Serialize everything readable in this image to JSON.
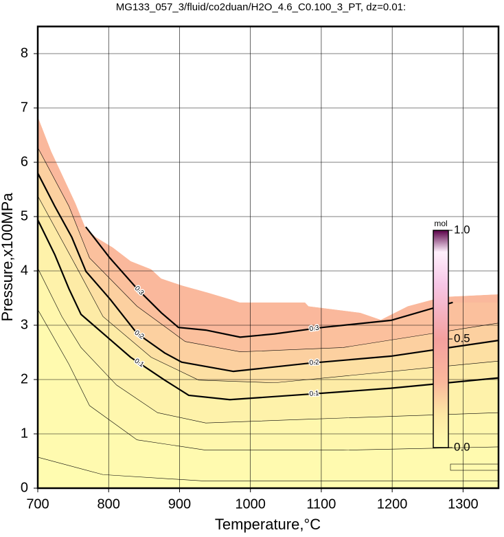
{
  "chart_data": {
    "type": "contour",
    "title": "MG133_057_3/fluid/co2duan/H2O_4.6_C0.100_3_PT, dz=0.01:",
    "x_label": "Temperature,°C",
    "y_label": "Pressure,x100MPa",
    "xlim": [
      700,
      1350
    ],
    "ylim": [
      0,
      8.5
    ],
    "xticks": [
      700,
      800,
      900,
      1000,
      1100,
      1200,
      1300
    ],
    "yticks": [
      0,
      1,
      2,
      3,
      4,
      5,
      6,
      7,
      8
    ],
    "grid": true,
    "region": {
      "x": [
        700,
        719,
        753,
        767,
        782,
        806,
        831,
        860,
        874,
        904,
        940,
        971,
        985,
        1077,
        1082,
        1155,
        1184,
        1222,
        1271,
        1350
      ],
      "y": [
        6.84,
        6.2,
        5.25,
        4.8,
        4.62,
        4.43,
        4.18,
        4.03,
        3.86,
        3.73,
        3.6,
        3.48,
        3.42,
        3.42,
        3.35,
        3.23,
        3.1,
        3.35,
        3.52,
        3.57
      ]
    },
    "contours": [
      {
        "level": 0.005,
        "x": [
          700,
          792,
          937,
          1350
        ],
        "y": [
          0.57,
          0.25,
          0.13,
          0.13
        ]
      },
      {
        "level": 0.02,
        "x": [
          700,
          744,
          773,
          840,
          937,
          1131,
          1350
        ],
        "y": [
          3.29,
          2.28,
          1.52,
          0.89,
          0.7,
          0.7,
          0.76
        ]
      },
      {
        "level": 0.05,
        "x": [
          700,
          734,
          761,
          811,
          869,
          937,
          1082,
          1350
        ],
        "y": [
          4.05,
          3.16,
          2.59,
          1.9,
          1.39,
          1.2,
          1.27,
          1.39
        ]
      },
      {
        "level": 0.1,
        "label": "0.1",
        "x": [
          700,
          724,
          744,
          761,
          792,
          831,
          879,
          913,
          971,
          1082,
          1198,
          1350
        ],
        "y": [
          4.94,
          4.3,
          3.67,
          3.2,
          2.85,
          2.41,
          1.99,
          1.71,
          1.63,
          1.73,
          1.84,
          2.03
        ]
      },
      {
        "level": 0.15,
        "x": [
          700,
          753,
          792,
          860,
          927,
          1034,
          1350
        ],
        "y": [
          5.38,
          4.11,
          3.16,
          2.41,
          1.99,
          1.94,
          2.34
        ]
      },
      {
        "level": 0.2,
        "label": "0.2",
        "x": [
          700,
          724,
          748,
          768,
          802,
          840,
          879,
          903,
          976,
          1082,
          1198,
          1350
        ],
        "y": [
          5.8,
          5.19,
          4.62,
          3.99,
          3.48,
          2.85,
          2.49,
          2.32,
          2.15,
          2.3,
          2.43,
          2.72
        ]
      },
      {
        "level": 0.25,
        "x": [
          700,
          744,
          773,
          840,
          908,
          986,
          1131,
          1350
        ],
        "y": [
          6.27,
          5.19,
          4.24,
          3.35,
          2.7,
          2.51,
          2.59,
          3.04
        ]
      },
      {
        "level": 0.3,
        "label": "0.3",
        "x": [
          767.7,
          801.6,
          840.3,
          874.2,
          898.4,
          937.1,
          985.5,
          1033.9,
          1101.6,
          1198.4,
          1285.5
        ],
        "y": [
          4.81,
          4.24,
          3.67,
          3.23,
          2.96,
          2.91,
          2.78,
          2.84,
          2.96,
          3.09,
          3.42
        ]
      }
    ],
    "colorbar": {
      "title": "mol",
      "clim": [
        0,
        1
      ],
      "ticks": [
        {
          "value": 0,
          "label": "0.0"
        },
        {
          "value": 0.5,
          "label": "0.5"
        },
        {
          "value": 1,
          "label": "1.0"
        }
      ],
      "colormap": [
        {
          "value": 0,
          "color": "#fffcb0"
        },
        {
          "value": 0.15,
          "color": "#fde8a4"
        },
        {
          "value": 0.3,
          "color": "#fab89c"
        },
        {
          "value": 0.5,
          "color": "#f4a09e"
        },
        {
          "value": 0.75,
          "color": "#f6c6e6"
        },
        {
          "value": 0.9,
          "color": "#fff0fc"
        },
        {
          "value": 1,
          "color": "#5a0048"
        }
      ]
    }
  }
}
